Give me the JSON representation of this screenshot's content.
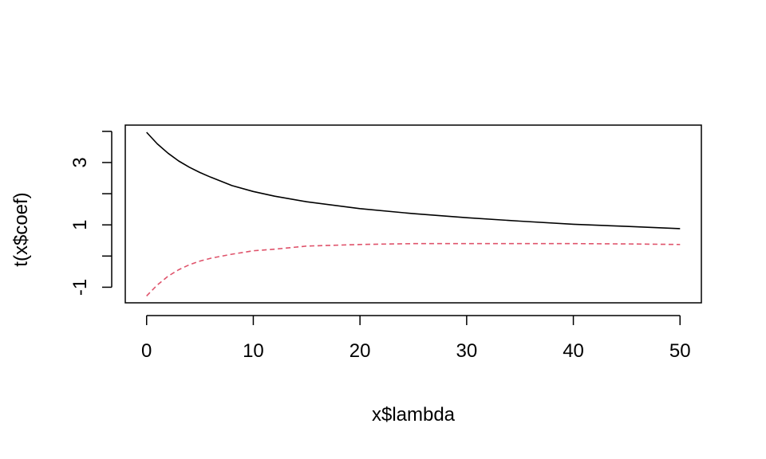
{
  "chart_data": {
    "type": "line",
    "title": "",
    "xlabel": "x$lambda",
    "ylabel": "t(x$coef)",
    "xlim": [
      -2,
      52
    ],
    "ylim": [
      -1.5,
      4.2
    ],
    "x_ticks": [
      0,
      10,
      20,
      30,
      40,
      50
    ],
    "x_tick_labels": [
      "0",
      "10",
      "20",
      "30",
      "40",
      "50"
    ],
    "y_ticks": [
      -1,
      0,
      1,
      2,
      3,
      4
    ],
    "y_tick_labels": [
      "-1",
      "",
      "1",
      "",
      "3",
      ""
    ],
    "grid": false,
    "legend": "none",
    "series": [
      {
        "color": "#000000",
        "dash": "solid",
        "x": [
          0,
          1,
          2,
          3,
          4,
          5,
          6,
          8,
          10,
          12,
          15,
          20,
          25,
          30,
          35,
          40,
          45,
          50
        ],
        "y": [
          3.97,
          3.6,
          3.3,
          3.05,
          2.85,
          2.68,
          2.53,
          2.26,
          2.07,
          1.92,
          1.74,
          1.52,
          1.36,
          1.23,
          1.12,
          1.02,
          0.95,
          0.88
        ]
      },
      {
        "color": "#DF536B",
        "dash": "dashed",
        "x": [
          0,
          1,
          2,
          3,
          4,
          5,
          6,
          8,
          10,
          12,
          15,
          20,
          25,
          30,
          35,
          40,
          45,
          50
        ],
        "y": [
          -1.28,
          -0.93,
          -0.65,
          -0.44,
          -0.28,
          -0.16,
          -0.07,
          0.06,
          0.17,
          0.22,
          0.32,
          0.37,
          0.4,
          0.4,
          0.4,
          0.4,
          0.39,
          0.37
        ]
      }
    ]
  }
}
